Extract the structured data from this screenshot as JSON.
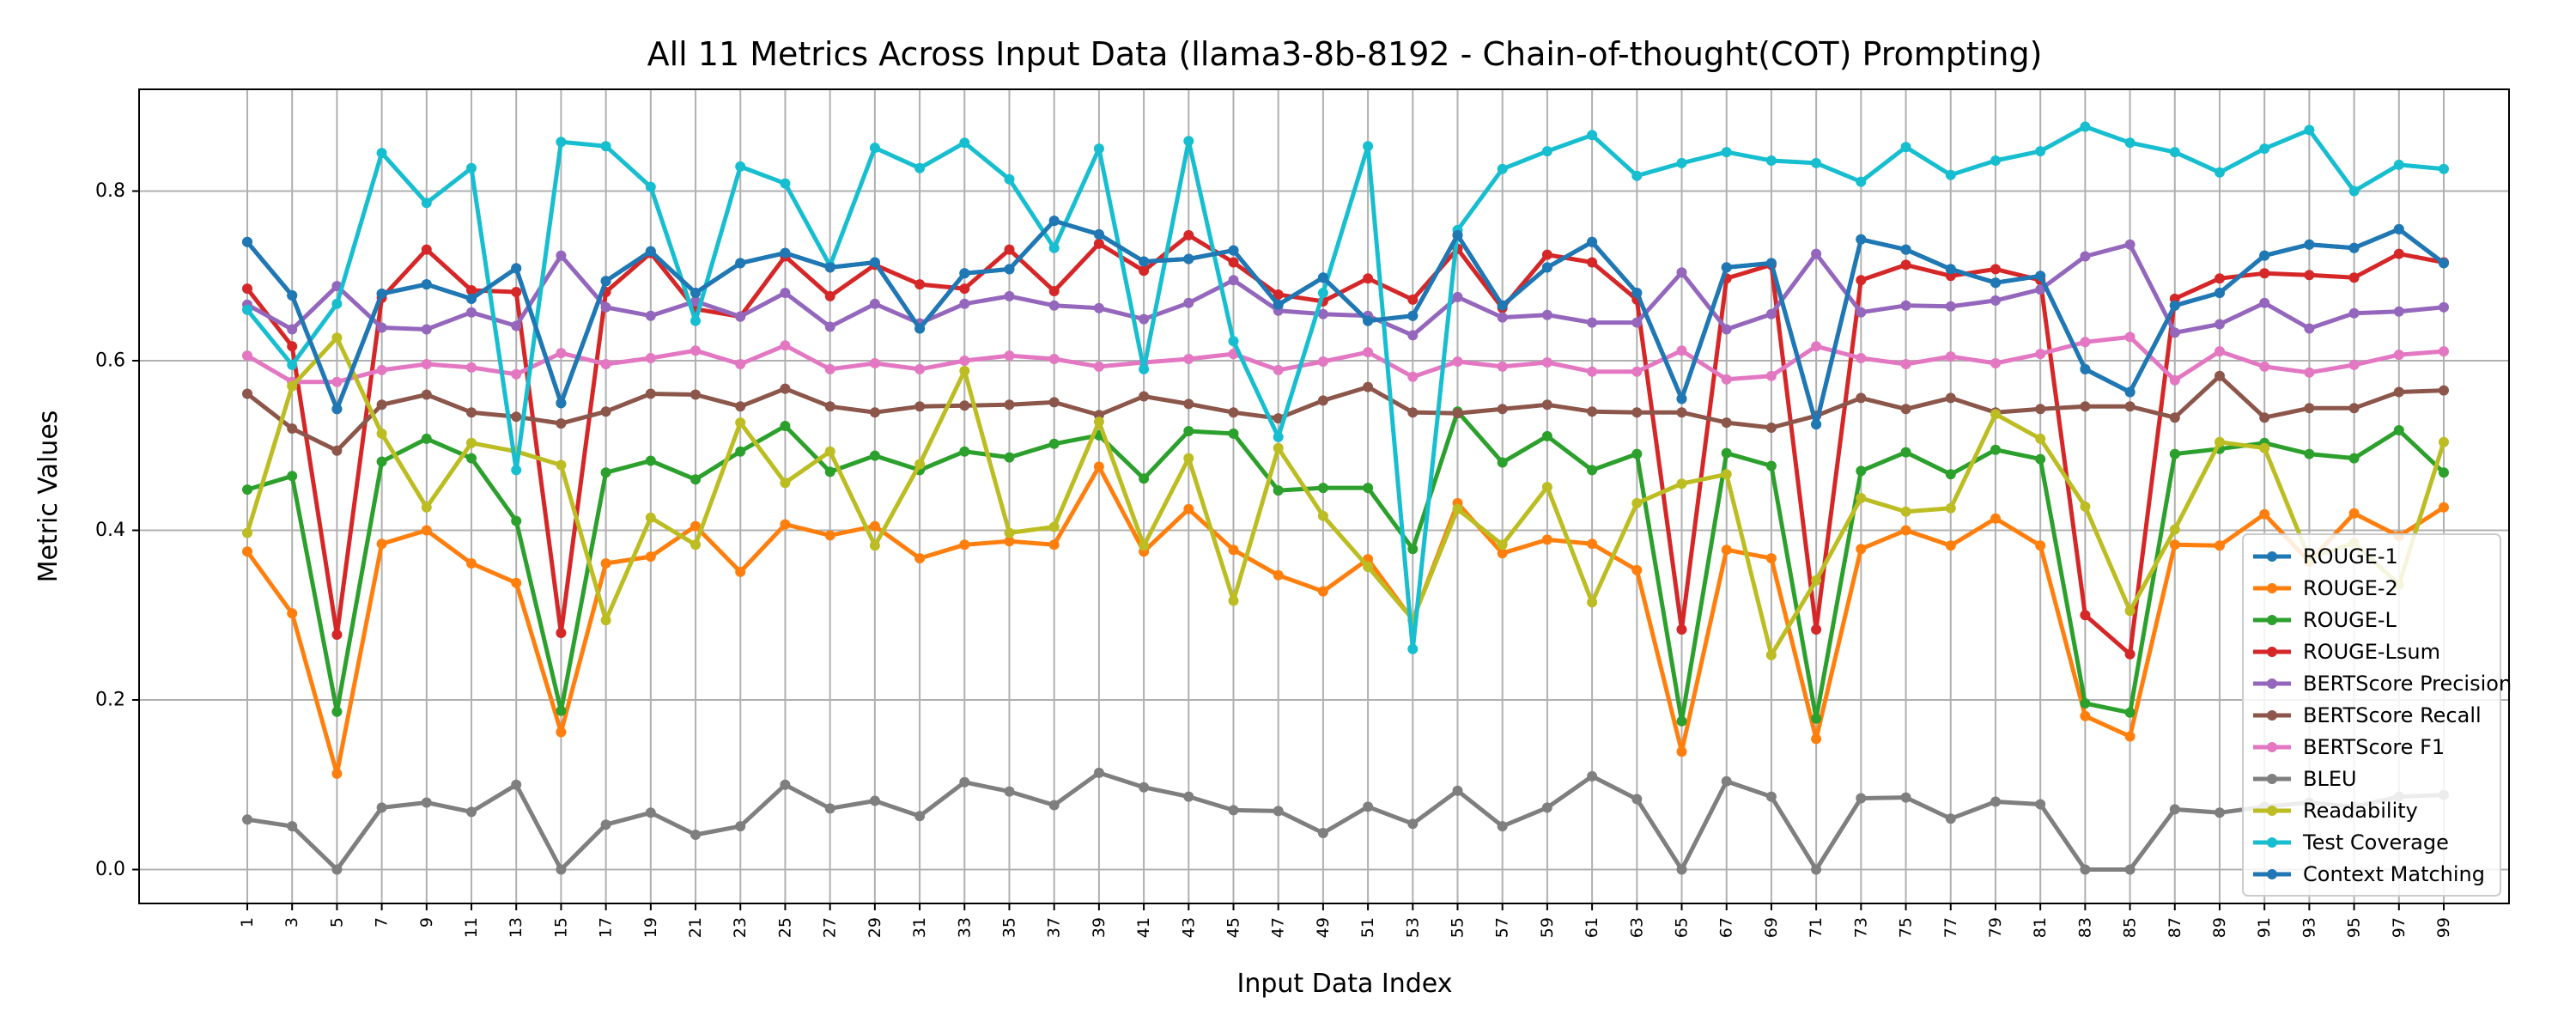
{
  "chart_data": {
    "type": "line",
    "title": "All 11 Metrics Across Input Data (llama3-8b-8192 - Chain-of-thought(COT) Prompting)",
    "xlabel": "Input Data Index",
    "ylabel": "Metric Values",
    "ylim": [
      -0.04,
      0.92
    ],
    "yticks": [
      "0.0",
      "0.2",
      "0.4",
      "0.6",
      "0.8"
    ],
    "ytick_values": [
      0.0,
      0.2,
      0.4,
      0.6,
      0.8
    ],
    "grid": true,
    "legend_position": "lower-right",
    "x": [
      "1",
      "3",
      "5",
      "7",
      "9",
      "11",
      "13",
      "15",
      "17",
      "19",
      "21",
      "23",
      "25",
      "27",
      "29",
      "31",
      "33",
      "35",
      "37",
      "39",
      "41",
      "43",
      "45",
      "47",
      "49",
      "51",
      "53",
      "55",
      "57",
      "59",
      "61",
      "63",
      "65",
      "67",
      "69",
      "71",
      "73",
      "75",
      "77",
      "79",
      "81",
      "83",
      "85",
      "87",
      "89",
      "91",
      "93",
      "95",
      "97",
      "99"
    ],
    "series": [
      {
        "name": "ROUGE-1",
        "color": "#1f77b4",
        "values": [
          0.74,
          0.677,
          0.543,
          0.679,
          0.69,
          0.673,
          0.709,
          0.55,
          0.694,
          0.729,
          0.68,
          0.715,
          0.727,
          0.71,
          0.716,
          0.638,
          0.703,
          0.708,
          0.765,
          0.749,
          0.717,
          0.72,
          0.73,
          0.666,
          0.698,
          0.647,
          0.653,
          0.748,
          0.665,
          0.71,
          0.74,
          0.68,
          0.555,
          0.71,
          0.715,
          0.525,
          0.743,
          0.731,
          0.708,
          0.692,
          0.7,
          0.59,
          0.563,
          0.665,
          0.68,
          0.724,
          0.737,
          0.733,
          0.755,
          0.715
        ]
      },
      {
        "name": "ROUGE-2",
        "color": "#ff7f0e",
        "values": [
          0.375,
          0.302,
          0.113,
          0.384,
          0.4,
          0.361,
          0.338,
          0.162,
          0.361,
          0.369,
          0.405,
          0.351,
          0.407,
          0.394,
          0.405,
          0.367,
          0.383,
          0.387,
          0.383,
          0.475,
          0.375,
          0.425,
          0.377,
          0.347,
          0.328,
          0.366,
          0.294,
          0.432,
          0.373,
          0.389,
          0.384,
          0.353,
          0.139,
          0.377,
          0.367,
          0.154,
          0.378,
          0.4,
          0.382,
          0.414,
          0.382,
          0.181,
          0.157,
          0.383,
          0.382,
          0.419,
          0.363,
          0.42,
          0.393,
          0.427
        ]
      },
      {
        "name": "ROUGE-L",
        "color": "#2ca02c",
        "values": [
          0.448,
          0.464,
          0.186,
          0.481,
          0.508,
          0.485,
          0.411,
          0.187,
          0.468,
          0.482,
          0.46,
          0.493,
          0.523,
          0.469,
          0.488,
          0.471,
          0.493,
          0.486,
          0.502,
          0.512,
          0.461,
          0.517,
          0.514,
          0.447,
          0.45,
          0.45,
          0.378,
          0.54,
          0.48,
          0.511,
          0.471,
          0.49,
          0.175,
          0.491,
          0.476,
          0.178,
          0.47,
          0.492,
          0.466,
          0.495,
          0.484,
          0.196,
          0.185,
          0.49,
          0.496,
          0.503,
          0.49,
          0.485,
          0.518,
          0.468
        ]
      },
      {
        "name": "ROUGE-Lsum",
        "color": "#d62728",
        "values": [
          0.685,
          0.617,
          0.277,
          0.674,
          0.731,
          0.683,
          0.681,
          0.279,
          0.681,
          0.727,
          0.661,
          0.652,
          0.723,
          0.676,
          0.713,
          0.69,
          0.685,
          0.731,
          0.682,
          0.738,
          0.706,
          0.748,
          0.716,
          0.678,
          0.67,
          0.697,
          0.672,
          0.732,
          0.662,
          0.725,
          0.716,
          0.672,
          0.283,
          0.697,
          0.713,
          0.283,
          0.695,
          0.713,
          0.7,
          0.708,
          0.695,
          0.3,
          0.254,
          0.673,
          0.697,
          0.703,
          0.701,
          0.698,
          0.726,
          0.716
        ]
      },
      {
        "name": "BERTScore Precision",
        "color": "#9467bd",
        "values": [
          0.666,
          0.637,
          0.688,
          0.639,
          0.637,
          0.657,
          0.641,
          0.724,
          0.663,
          0.653,
          0.67,
          0.652,
          0.68,
          0.64,
          0.667,
          0.644,
          0.667,
          0.676,
          0.665,
          0.662,
          0.649,
          0.668,
          0.695,
          0.659,
          0.655,
          0.653,
          0.63,
          0.675,
          0.651,
          0.654,
          0.645,
          0.645,
          0.704,
          0.637,
          0.655,
          0.726,
          0.657,
          0.665,
          0.664,
          0.671,
          0.684,
          0.723,
          0.737,
          0.633,
          0.643,
          0.668,
          0.638,
          0.656,
          0.658,
          0.663
        ]
      },
      {
        "name": "BERTScore Recall",
        "color": "#8c564b",
        "values": [
          0.561,
          0.52,
          0.494,
          0.548,
          0.56,
          0.539,
          0.534,
          0.526,
          0.54,
          0.561,
          0.56,
          0.546,
          0.567,
          0.546,
          0.539,
          0.546,
          0.547,
          0.548,
          0.551,
          0.536,
          0.558,
          0.549,
          0.539,
          0.532,
          0.553,
          0.569,
          0.539,
          0.538,
          0.543,
          0.548,
          0.54,
          0.539,
          0.539,
          0.527,
          0.521,
          0.535,
          0.556,
          0.543,
          0.556,
          0.539,
          0.543,
          0.546,
          0.546,
          0.533,
          0.582,
          0.533,
          0.544,
          0.544,
          0.563,
          0.565
        ]
      },
      {
        "name": "BERTScore F1",
        "color": "#e377c2",
        "values": [
          0.606,
          0.575,
          0.575,
          0.589,
          0.596,
          0.592,
          0.584,
          0.609,
          0.596,
          0.603,
          0.612,
          0.596,
          0.618,
          0.59,
          0.597,
          0.59,
          0.6,
          0.606,
          0.602,
          0.593,
          0.598,
          0.602,
          0.608,
          0.589,
          0.599,
          0.61,
          0.581,
          0.599,
          0.593,
          0.598,
          0.587,
          0.587,
          0.612,
          0.578,
          0.582,
          0.617,
          0.603,
          0.596,
          0.605,
          0.597,
          0.608,
          0.622,
          0.628,
          0.577,
          0.611,
          0.593,
          0.586,
          0.595,
          0.607,
          0.611
        ]
      },
      {
        "name": "BLEU",
        "color": "#7f7f7f",
        "values": [
          0.059,
          0.051,
          0.0,
          0.073,
          0.079,
          0.068,
          0.1,
          0.0,
          0.053,
          0.067,
          0.041,
          0.051,
          0.1,
          0.072,
          0.081,
          0.063,
          0.103,
          0.092,
          0.076,
          0.114,
          0.097,
          0.086,
          0.07,
          0.069,
          0.043,
          0.074,
          0.054,
          0.093,
          0.051,
          0.073,
          0.11,
          0.083,
          0.0,
          0.104,
          0.086,
          0.0,
          0.084,
          0.085,
          0.06,
          0.08,
          0.077,
          0.0,
          0.0,
          0.071,
          0.067,
          0.074,
          0.079,
          0.074,
          0.086,
          0.088
        ]
      },
      {
        "name": "Readability",
        "color": "#bcbd22",
        "values": [
          0.397,
          0.57,
          0.627,
          0.514,
          0.427,
          0.503,
          0.493,
          0.477,
          0.294,
          0.415,
          0.383,
          0.527,
          0.456,
          0.493,
          0.382,
          0.478,
          0.588,
          0.397,
          0.404,
          0.528,
          0.382,
          0.485,
          0.317,
          0.497,
          0.417,
          0.357,
          0.295,
          0.425,
          0.383,
          0.451,
          0.315,
          0.432,
          0.455,
          0.466,
          0.253,
          0.341,
          0.438,
          0.422,
          0.426,
          0.537,
          0.508,
          0.428,
          0.305,
          0.401,
          0.504,
          0.497,
          0.367,
          0.385,
          0.336,
          0.504
        ]
      },
      {
        "name": "Test Coverage",
        "color": "#17becf",
        "values": [
          0.66,
          0.595,
          0.667,
          0.845,
          0.786,
          0.827,
          0.471,
          0.858,
          0.853,
          0.805,
          0.647,
          0.829,
          0.809,
          0.712,
          0.851,
          0.827,
          0.857,
          0.814,
          0.733,
          0.85,
          0.59,
          0.859,
          0.623,
          0.51,
          0.68,
          0.853,
          0.26,
          0.754,
          0.826,
          0.847,
          0.866,
          0.818,
          0.833,
          0.846,
          0.836,
          0.833,
          0.811,
          0.852,
          0.819,
          0.836,
          0.847,
          0.876,
          0.857,
          0.846,
          0.822,
          0.85,
          0.872,
          0.8,
          0.831,
          0.826
        ]
      },
      {
        "name": "Context Matching",
        "color": "#1f77b4",
        "values": [
          0.74,
          0.677,
          0.543,
          0.679,
          0.69,
          0.673,
          0.709,
          0.55,
          0.694,
          0.729,
          0.68,
          0.715,
          0.727,
          0.71,
          0.716,
          0.638,
          0.703,
          0.708,
          0.765,
          0.749,
          0.717,
          0.72,
          0.73,
          0.666,
          0.698,
          0.647,
          0.653,
          0.748,
          0.665,
          0.71,
          0.74,
          0.68,
          0.555,
          0.71,
          0.715,
          0.525,
          0.743,
          0.731,
          0.708,
          0.692,
          0.7,
          0.59,
          0.563,
          0.665,
          0.68,
          0.724,
          0.737,
          0.733,
          0.755,
          0.715
        ]
      }
    ]
  }
}
